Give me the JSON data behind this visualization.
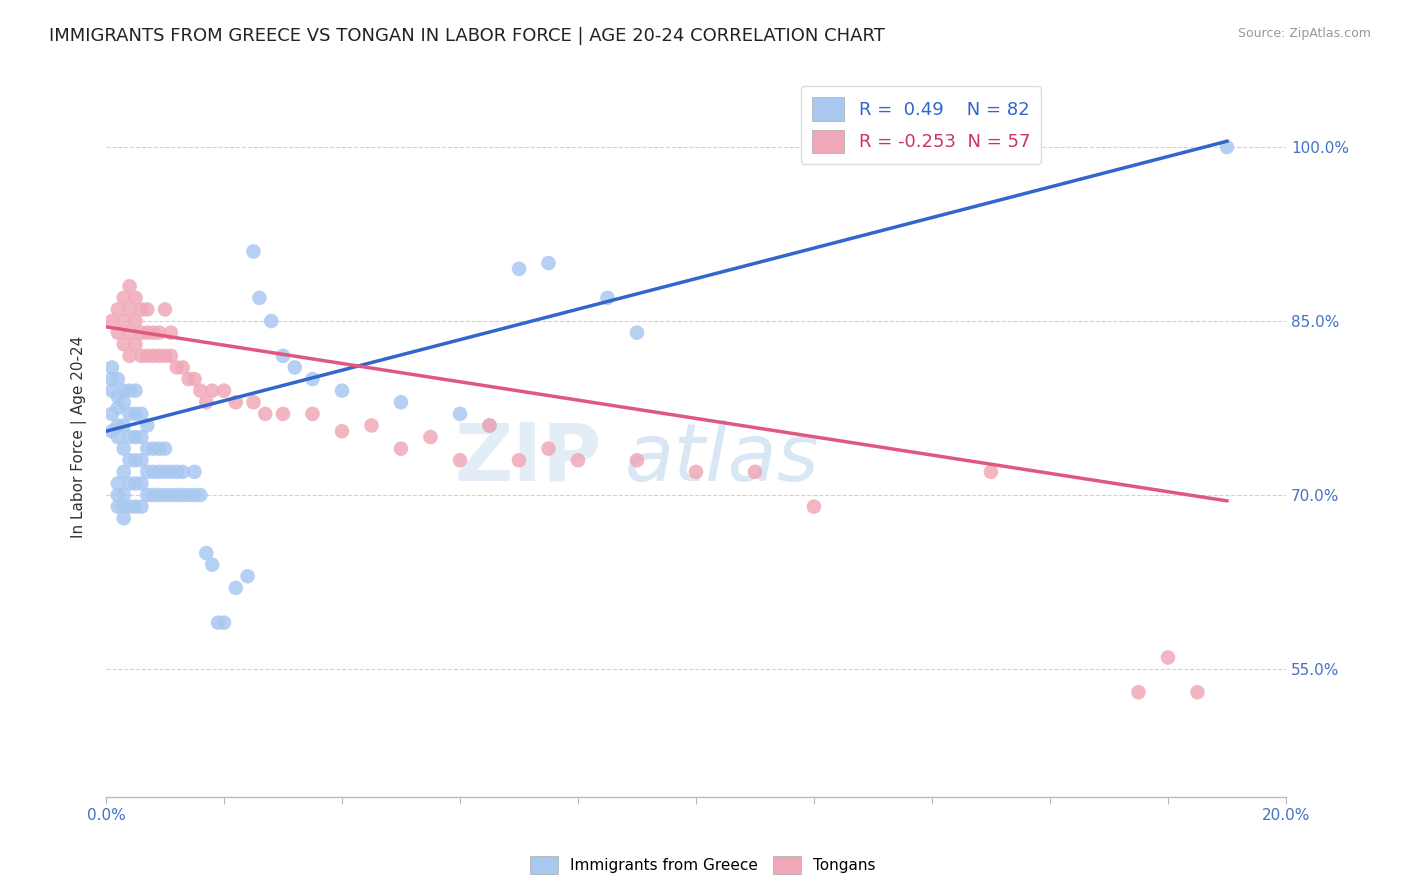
{
  "title": "IMMIGRANTS FROM GREECE VS TONGAN IN LABOR FORCE | AGE 20-24 CORRELATION CHART",
  "source": "Source: ZipAtlas.com",
  "ylabel": "In Labor Force | Age 20-24",
  "xlim": [
    0.0,
    0.2
  ],
  "ylim": [
    0.44,
    1.06
  ],
  "xticks": [
    0.0,
    0.02,
    0.04,
    0.06,
    0.08,
    0.1,
    0.12,
    0.14,
    0.16,
    0.18,
    0.2
  ],
  "xticklabels": [
    "0.0%",
    "",
    "",
    "",
    "",
    "",
    "",
    "",
    "",
    "",
    "20.0%"
  ],
  "ytick_positions": [
    0.55,
    0.7,
    0.85,
    1.0
  ],
  "ytick_labels": [
    "55.0%",
    "70.0%",
    "85.0%",
    "100.0%"
  ],
  "grid_color": "#cccccc",
  "background_color": "#ffffff",
  "blue_color": "#A8C8F0",
  "pink_color": "#F0A8B8",
  "blue_line_color": "#3366CC",
  "pink_line_color": "#E05880",
  "R_blue": 0.49,
  "N_blue": 82,
  "R_pink": -0.253,
  "N_pink": 57,
  "legend_label_blue": "Immigrants from Greece",
  "legend_label_pink": "Tongans",
  "title_fontsize": 13,
  "axis_label_fontsize": 11,
  "tick_fontsize": 11,
  "blue_trend_x": [
    0.0,
    0.19
  ],
  "blue_trend_y": [
    0.755,
    1.005
  ],
  "pink_trend_x": [
    0.0,
    0.19
  ],
  "pink_trend_y": [
    0.845,
    0.695
  ],
  "blue_scatter_x": [
    0.001,
    0.001,
    0.001,
    0.001,
    0.001,
    0.002,
    0.002,
    0.002,
    0.002,
    0.002,
    0.002,
    0.002,
    0.002,
    0.003,
    0.003,
    0.003,
    0.003,
    0.003,
    0.003,
    0.003,
    0.003,
    0.004,
    0.004,
    0.004,
    0.004,
    0.004,
    0.004,
    0.005,
    0.005,
    0.005,
    0.005,
    0.005,
    0.005,
    0.006,
    0.006,
    0.006,
    0.006,
    0.006,
    0.007,
    0.007,
    0.007,
    0.007,
    0.008,
    0.008,
    0.008,
    0.009,
    0.009,
    0.009,
    0.01,
    0.01,
    0.01,
    0.011,
    0.011,
    0.012,
    0.012,
    0.013,
    0.013,
    0.014,
    0.015,
    0.015,
    0.016,
    0.017,
    0.018,
    0.019,
    0.02,
    0.022,
    0.024,
    0.025,
    0.026,
    0.028,
    0.03,
    0.032,
    0.035,
    0.04,
    0.05,
    0.06,
    0.065,
    0.07,
    0.075,
    0.085,
    0.09,
    0.19
  ],
  "blue_scatter_y": [
    0.755,
    0.77,
    0.79,
    0.8,
    0.81,
    0.69,
    0.7,
    0.71,
    0.75,
    0.76,
    0.775,
    0.785,
    0.8,
    0.68,
    0.69,
    0.7,
    0.72,
    0.74,
    0.76,
    0.78,
    0.79,
    0.69,
    0.71,
    0.73,
    0.75,
    0.77,
    0.79,
    0.69,
    0.71,
    0.73,
    0.75,
    0.77,
    0.79,
    0.69,
    0.71,
    0.73,
    0.75,
    0.77,
    0.7,
    0.72,
    0.74,
    0.76,
    0.7,
    0.72,
    0.74,
    0.7,
    0.72,
    0.74,
    0.7,
    0.72,
    0.74,
    0.7,
    0.72,
    0.7,
    0.72,
    0.7,
    0.72,
    0.7,
    0.7,
    0.72,
    0.7,
    0.65,
    0.64,
    0.59,
    0.59,
    0.62,
    0.63,
    0.91,
    0.87,
    0.85,
    0.82,
    0.81,
    0.8,
    0.79,
    0.78,
    0.77,
    0.76,
    0.895,
    0.9,
    0.87,
    0.84,
    1.0
  ],
  "pink_scatter_x": [
    0.001,
    0.002,
    0.002,
    0.003,
    0.003,
    0.003,
    0.004,
    0.004,
    0.004,
    0.004,
    0.005,
    0.005,
    0.005,
    0.006,
    0.006,
    0.006,
    0.007,
    0.007,
    0.007,
    0.008,
    0.008,
    0.009,
    0.009,
    0.01,
    0.01,
    0.011,
    0.011,
    0.012,
    0.013,
    0.014,
    0.015,
    0.016,
    0.017,
    0.018,
    0.02,
    0.022,
    0.025,
    0.027,
    0.03,
    0.035,
    0.04,
    0.045,
    0.05,
    0.055,
    0.06,
    0.065,
    0.07,
    0.075,
    0.08,
    0.09,
    0.1,
    0.11,
    0.12,
    0.15,
    0.175,
    0.18,
    0.185
  ],
  "pink_scatter_y": [
    0.85,
    0.84,
    0.86,
    0.83,
    0.85,
    0.87,
    0.82,
    0.84,
    0.86,
    0.88,
    0.83,
    0.85,
    0.87,
    0.82,
    0.84,
    0.86,
    0.82,
    0.84,
    0.86,
    0.82,
    0.84,
    0.82,
    0.84,
    0.82,
    0.86,
    0.82,
    0.84,
    0.81,
    0.81,
    0.8,
    0.8,
    0.79,
    0.78,
    0.79,
    0.79,
    0.78,
    0.78,
    0.77,
    0.77,
    0.77,
    0.755,
    0.76,
    0.74,
    0.75,
    0.73,
    0.76,
    0.73,
    0.74,
    0.73,
    0.73,
    0.72,
    0.72,
    0.69,
    0.72,
    0.53,
    0.56,
    0.53
  ]
}
